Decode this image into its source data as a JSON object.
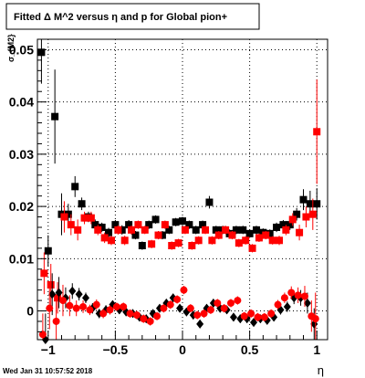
{
  "title": "Fitted Δ M^2 versus η and p for Global pion+",
  "footer": "Wed Jan 31 10:57:52 2018",
  "chart_data": {
    "type": "scatter",
    "title": "Fitted Δ M^2 versus η and p for Global pion+",
    "xlabel": "η",
    "ylabel": "σ_{M2}",
    "xlim": [
      -1.08,
      1.08
    ],
    "ylim": [
      -0.0055,
      0.052
    ],
    "xticks": [
      -1,
      -0.5,
      0,
      0.5,
      1
    ],
    "xtick_labels": [
      "−1",
      "−0.5",
      "0",
      "0.5",
      "1"
    ],
    "yticks": [
      0,
      0.01,
      0.02,
      0.03,
      0.04,
      0.05
    ],
    "ytick_labels": [
      "0",
      "0.01",
      "0.02",
      "0.03",
      "0.04",
      "0.05"
    ],
    "grid": true,
    "series": [
      {
        "color": "#000000",
        "marker": "square",
        "x": [
          -1.05,
          -1.0,
          -0.95,
          -0.9,
          -0.85,
          -0.8,
          -0.75,
          -0.7,
          -0.65,
          -0.6,
          -0.55,
          -0.5,
          -0.45,
          -0.4,
          -0.35,
          -0.3,
          -0.25,
          -0.2,
          -0.15,
          -0.1,
          -0.05,
          0.0,
          0.05,
          0.1,
          0.15,
          0.2,
          0.25,
          0.3,
          0.35,
          0.4,
          0.45,
          0.5,
          0.55,
          0.6,
          0.65,
          0.7,
          0.75,
          0.8,
          0.85,
          0.9,
          0.95,
          1.0
        ],
        "y": [
          0.0495,
          0.0115,
          0.0372,
          0.0185,
          0.0185,
          0.0238,
          0.0205,
          0.018,
          0.0165,
          0.016,
          0.015,
          0.0165,
          0.0155,
          0.0165,
          0.0145,
          0.0125,
          0.0165,
          0.0175,
          0.0145,
          0.0155,
          0.017,
          0.0172,
          0.0165,
          0.0155,
          0.0165,
          0.0208,
          0.0155,
          0.0155,
          0.0148,
          0.0155,
          0.0155,
          0.0148,
          0.0155,
          0.015,
          0.0148,
          0.016,
          0.0165,
          0.0165,
          0.0185,
          0.0213,
          0.0205,
          0.0205
        ],
        "yerr": [
          0.006,
          0.003,
          0.009,
          0.004,
          0.002,
          0.002,
          0.0012,
          0.001,
          0.001,
          0.0009,
          0.0009,
          0.0009,
          0.0009,
          0.0009,
          0.0008,
          0.0008,
          0.0008,
          0.0008,
          0.0008,
          0.0008,
          0.0008,
          0.0008,
          0.0008,
          0.0008,
          0.0008,
          0.0012,
          0.0008,
          0.0008,
          0.0008,
          0.0008,
          0.0008,
          0.0008,
          0.0008,
          0.0008,
          0.0008,
          0.0009,
          0.0009,
          0.001,
          0.0012,
          0.002,
          0.0025,
          0.003
        ]
      },
      {
        "color": "#ff0000",
        "marker": "square",
        "x": [
          -1.03,
          -0.98,
          -0.93,
          -0.88,
          -0.83,
          -0.78,
          -0.73,
          -0.68,
          -0.63,
          -0.58,
          -0.53,
          -0.48,
          -0.43,
          -0.38,
          -0.33,
          -0.28,
          -0.23,
          -0.18,
          -0.13,
          -0.08,
          -0.03,
          0.02,
          0.07,
          0.12,
          0.17,
          0.22,
          0.27,
          0.32,
          0.37,
          0.42,
          0.47,
          0.52,
          0.57,
          0.62,
          0.67,
          0.72,
          0.77,
          0.82,
          0.87,
          0.92,
          0.97,
          1.0
        ],
        "y": [
          0.0072,
          0.005,
          0.0025,
          0.018,
          0.0165,
          0.0155,
          0.0178,
          0.0178,
          0.0155,
          0.014,
          0.0135,
          0.0155,
          0.0135,
          0.0155,
          0.0165,
          0.0155,
          0.0128,
          0.0145,
          0.0165,
          0.0125,
          0.013,
          0.0155,
          0.0125,
          0.0135,
          0.0155,
          0.0135,
          0.0145,
          0.0155,
          0.0145,
          0.013,
          0.0135,
          0.012,
          0.014,
          0.0145,
          0.0135,
          0.0135,
          0.0155,
          0.0175,
          0.015,
          0.018,
          0.0185,
          0.0343
        ],
        "yerr": [
          0.004,
          0.004,
          0.003,
          0.003,
          0.002,
          0.002,
          0.0012,
          0.0012,
          0.001,
          0.001,
          0.0009,
          0.0009,
          0.0009,
          0.0009,
          0.0008,
          0.0008,
          0.0008,
          0.0008,
          0.0008,
          0.0008,
          0.0008,
          0.0008,
          0.0008,
          0.0008,
          0.0008,
          0.0008,
          0.0008,
          0.0008,
          0.0008,
          0.0008,
          0.0008,
          0.0008,
          0.0008,
          0.0008,
          0.0008,
          0.0009,
          0.001,
          0.0012,
          0.0015,
          0.002,
          0.003,
          0.01
        ]
      },
      {
        "color": "#000000",
        "marker": "diamond",
        "x": [
          -1.02,
          -0.97,
          -0.92,
          -0.87,
          -0.82,
          -0.77,
          -0.72,
          -0.67,
          -0.62,
          -0.57,
          -0.52,
          -0.47,
          -0.42,
          -0.37,
          -0.32,
          -0.27,
          -0.22,
          -0.17,
          -0.12,
          -0.07,
          -0.02,
          0.03,
          0.08,
          0.13,
          0.18,
          0.23,
          0.28,
          0.33,
          0.38,
          0.43,
          0.48,
          0.53,
          0.58,
          0.63,
          0.68,
          0.73,
          0.78,
          0.83,
          0.88,
          0.93,
          0.98
        ],
        "y": [
          -0.0055,
          0.0032,
          0.0035,
          0.0025,
          0.0038,
          0.0032,
          0.0025,
          0.0005,
          -0.0005,
          0.0002,
          0.0012,
          0.0002,
          -0.0002,
          -0.0005,
          -0.0012,
          -0.0015,
          -0.0005,
          0.0005,
          0.0015,
          0.0025,
          0.0005,
          -0.0002,
          -0.0008,
          -0.0025,
          0.0005,
          0.0015,
          0.0005,
          0.0002,
          -0.0012,
          -0.0015,
          -0.0015,
          -0.0022,
          -0.0015,
          -0.0018,
          -0.0012,
          0.0002,
          0.0008,
          0.0025,
          0.0025,
          0.0015,
          -0.0025
        ],
        "yerr": [
          0.005,
          0.004,
          0.003,
          0.002,
          0.0015,
          0.0012,
          0.001,
          0.001,
          0.0009,
          0.0009,
          0.0008,
          0.0008,
          0.0008,
          0.0008,
          0.0008,
          0.0008,
          0.0008,
          0.0008,
          0.0008,
          0.0008,
          0.0008,
          0.0008,
          0.0008,
          0.0008,
          0.0008,
          0.0008,
          0.0008,
          0.0008,
          0.0008,
          0.0008,
          0.0008,
          0.0008,
          0.0008,
          0.0008,
          0.0008,
          0.0009,
          0.001,
          0.0012,
          0.0015,
          0.002,
          0.003
        ]
      },
      {
        "color": "#ff0000",
        "marker": "circle",
        "x": [
          -1.04,
          -0.99,
          -0.94,
          -0.89,
          -0.84,
          -0.79,
          -0.74,
          -0.69,
          -0.64,
          -0.59,
          -0.54,
          -0.49,
          -0.44,
          -0.39,
          -0.34,
          -0.29,
          -0.24,
          -0.19,
          -0.14,
          -0.09,
          -0.04,
          0.01,
          0.06,
          0.11,
          0.16,
          0.21,
          0.26,
          0.31,
          0.36,
          0.41,
          0.46,
          0.51,
          0.56,
          0.61,
          0.66,
          0.71,
          0.76,
          0.81,
          0.86,
          0.91,
          0.96,
          0.99
        ],
        "y": [
          -0.0045,
          0.0005,
          -0.002,
          0.002,
          0.001,
          0.0005,
          0.0008,
          0.0002,
          0.0012,
          -0.0005,
          0.0002,
          0.0008,
          0.0008,
          -0.0005,
          -0.0008,
          -0.0015,
          -0.002,
          -0.001,
          0.0005,
          0.0012,
          0.0022,
          0.004,
          0.0005,
          -0.0008,
          -0.0005,
          0.0002,
          0.0015,
          0.0005,
          0.0015,
          0.002,
          -0.001,
          -0.0005,
          -0.0012,
          -0.0012,
          -0.0005,
          0.0012,
          0.0025,
          0.0035,
          0.003,
          0.0028,
          -0.001,
          -0.0015
        ],
        "yerr": [
          0.004,
          0.004,
          0.004,
          0.003,
          0.002,
          0.0015,
          0.0012,
          0.001,
          0.001,
          0.0009,
          0.0009,
          0.0008,
          0.0008,
          0.0008,
          0.0008,
          0.0008,
          0.0008,
          0.0008,
          0.0008,
          0.0008,
          0.0008,
          0.0008,
          0.0008,
          0.0008,
          0.0008,
          0.0008,
          0.0008,
          0.0008,
          0.0008,
          0.0008,
          0.0008,
          0.0008,
          0.0008,
          0.0008,
          0.0008,
          0.0009,
          0.001,
          0.0012,
          0.0015,
          0.002,
          0.003,
          0.005
        ]
      }
    ]
  }
}
